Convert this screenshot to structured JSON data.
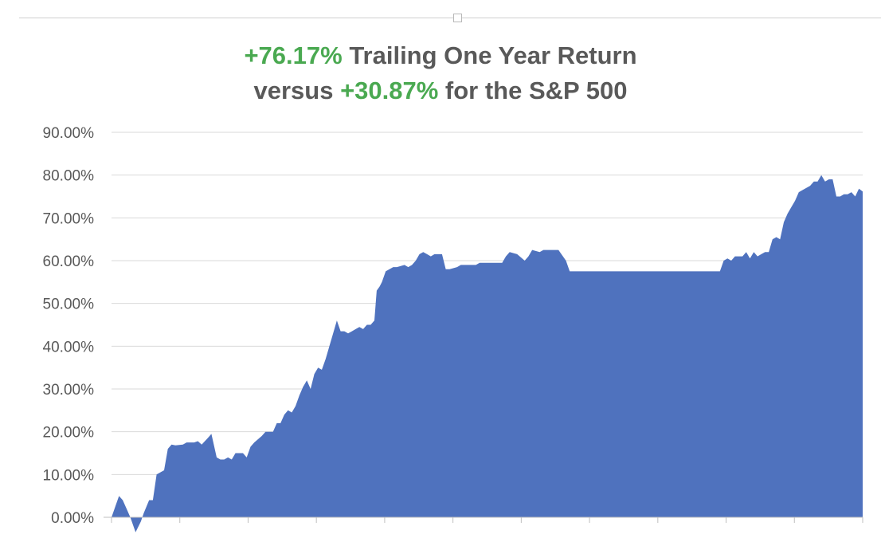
{
  "title": {
    "line1_highlight": "+76.17%",
    "line1_rest": " Trailing One Year Return",
    "line2_prefix": "versus ",
    "line2_highlight": "+30.87%",
    "line2_rest": " for the S&P 500"
  },
  "colors": {
    "area": "#4f72be",
    "highlight": "#4aa951",
    "text": "#595959",
    "grid": "#d9d9d9"
  },
  "chart_data": {
    "type": "area",
    "title": "+76.17% Trailing One Year Return versus +30.87% for the S&P 500",
    "xlabel": "",
    "ylabel": "",
    "ylim": [
      0,
      90
    ],
    "yticks": [
      "0.00%",
      "10.00%",
      "20.00%",
      "30.00%",
      "40.00%",
      "50.00%",
      "60.00%",
      "70.00%",
      "80.00%",
      "90.00%"
    ],
    "grid": true,
    "x_range": [
      0,
      100
    ],
    "series": [
      {
        "values": [
          [
            0,
            0
          ],
          [
            1,
            5
          ],
          [
            1.5,
            4
          ],
          [
            2,
            2
          ],
          [
            2.5,
            0
          ],
          [
            3.2,
            -3.5
          ],
          [
            3.9,
            -1
          ],
          [
            4.3,
            1
          ],
          [
            5,
            4
          ],
          [
            5.5,
            4
          ],
          [
            6,
            10
          ],
          [
            6.5,
            10.5
          ],
          [
            7,
            11
          ],
          [
            7.5,
            16
          ],
          [
            8,
            17
          ],
          [
            8.5,
            16.8
          ],
          [
            9.5,
            17
          ],
          [
            10,
            17.5
          ],
          [
            11,
            17.5
          ],
          [
            11.5,
            17.8
          ],
          [
            12,
            17
          ],
          [
            12.8,
            18.5
          ],
          [
            13.3,
            19.5
          ],
          [
            14,
            14
          ],
          [
            14.5,
            13.5
          ],
          [
            15,
            13.5
          ],
          [
            15.5,
            14
          ],
          [
            16,
            13.5
          ],
          [
            16.5,
            15
          ],
          [
            17.5,
            15
          ],
          [
            18,
            14
          ],
          [
            18.5,
            16.5
          ],
          [
            19,
            17.5
          ],
          [
            20,
            19
          ],
          [
            20.5,
            20
          ],
          [
            21,
            20
          ],
          [
            21.5,
            20
          ],
          [
            22,
            22
          ],
          [
            22.5,
            22
          ],
          [
            23,
            24
          ],
          [
            23.5,
            25
          ],
          [
            24,
            24.5
          ],
          [
            24.5,
            26
          ],
          [
            25,
            28.5
          ],
          [
            25.5,
            30.5
          ],
          [
            26,
            32
          ],
          [
            26.5,
            30
          ],
          [
            27,
            33.5
          ],
          [
            27.5,
            35
          ],
          [
            28,
            34.5
          ],
          [
            28.5,
            37
          ],
          [
            29,
            40
          ],
          [
            29.5,
            43
          ],
          [
            30,
            46
          ],
          [
            30.5,
            43.5
          ],
          [
            31,
            43.5
          ],
          [
            31.5,
            43
          ],
          [
            32,
            43.5
          ],
          [
            32.5,
            44
          ],
          [
            33,
            44.5
          ],
          [
            33.5,
            44
          ],
          [
            34,
            45
          ],
          [
            34.5,
            45
          ],
          [
            35,
            46
          ],
          [
            35.3,
            53
          ],
          [
            35.7,
            54
          ],
          [
            36,
            55
          ],
          [
            36.5,
            57.5
          ],
          [
            37,
            58
          ],
          [
            37.5,
            58.5
          ],
          [
            38,
            58.5
          ],
          [
            39,
            59
          ],
          [
            39.5,
            58.5
          ],
          [
            40,
            59
          ],
          [
            40.5,
            60
          ],
          [
            41,
            61.5
          ],
          [
            41.5,
            62
          ],
          [
            42,
            61.5
          ],
          [
            42.5,
            61
          ],
          [
            43,
            61.5
          ],
          [
            44,
            61.5
          ],
          [
            44.5,
            58
          ],
          [
            45,
            58
          ],
          [
            46,
            58.5
          ],
          [
            46.5,
            59
          ],
          [
            47,
            59
          ],
          [
            48,
            59
          ],
          [
            48.5,
            59
          ],
          [
            49,
            59.5
          ],
          [
            50,
            59.5
          ],
          [
            51,
            59.5
          ],
          [
            52,
            59.5
          ],
          [
            52.5,
            61
          ],
          [
            53,
            62
          ],
          [
            54,
            61.5
          ],
          [
            55,
            60
          ],
          [
            55.5,
            61
          ],
          [
            56,
            62.5
          ],
          [
            57,
            62
          ],
          [
            57.5,
            62.5
          ],
          [
            58.5,
            62.5
          ],
          [
            59.5,
            62.5
          ],
          [
            60.5,
            60
          ],
          [
            61,
            57.5
          ],
          [
            65,
            57.5
          ],
          [
            70,
            57.5
          ],
          [
            75,
            57.5
          ],
          [
            80,
            57.5
          ],
          [
            81,
            57.5
          ],
          [
            81.5,
            60
          ],
          [
            82,
            60.5
          ],
          [
            82.5,
            60
          ],
          [
            83,
            61
          ],
          [
            84,
            61
          ],
          [
            84.5,
            62
          ],
          [
            85,
            60.5
          ],
          [
            85.5,
            62
          ],
          [
            86,
            61
          ],
          [
            86.5,
            61.5
          ],
          [
            87,
            62
          ],
          [
            87.5,
            62
          ],
          [
            88,
            65
          ],
          [
            88.5,
            65.5
          ],
          [
            89,
            65
          ],
          [
            89.5,
            69
          ],
          [
            90,
            71
          ],
          [
            90.5,
            72.5
          ],
          [
            91,
            74
          ],
          [
            91.5,
            76
          ],
          [
            92,
            76.5
          ],
          [
            92.5,
            77
          ],
          [
            93,
            77.5
          ],
          [
            93.5,
            78.5
          ],
          [
            94,
            78.5
          ],
          [
            94.5,
            80
          ],
          [
            95,
            78.5
          ],
          [
            95.5,
            79
          ],
          [
            96,
            79
          ],
          [
            96.5,
            75
          ],
          [
            97,
            75
          ],
          [
            97.5,
            75.5
          ],
          [
            98,
            75.5
          ],
          [
            98.5,
            76
          ],
          [
            99,
            75
          ],
          [
            99.5,
            76.8
          ],
          [
            100,
            76.17
          ]
        ]
      }
    ]
  }
}
